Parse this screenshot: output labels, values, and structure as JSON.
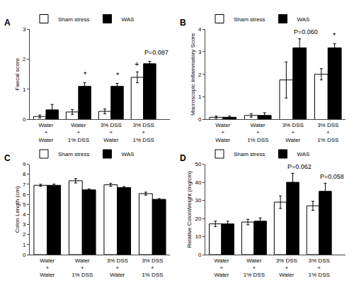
{
  "chart_data": [
    {
      "type": "bar",
      "title": "A",
      "ylabel": "Faecal score",
      "categories": [
        "Water\n+\nWater",
        "Water\n+\n1% DSS",
        "3% DSS\n+\nWater",
        "3% DSS\n+\n1% DSS"
      ],
      "series": [
        {
          "name": "Sham stress",
          "color": "white",
          "values": [
            0.1,
            0.25,
            0.27,
            1.4
          ],
          "errors": [
            0.05,
            0.08,
            0.08,
            0.18
          ]
        },
        {
          "name": "WAS",
          "color": "black",
          "values": [
            0.32,
            1.1,
            1.1,
            1.85
          ],
          "errors": [
            0.18,
            0.12,
            0.1,
            0.08
          ]
        }
      ],
      "ylim": [
        0,
        3
      ],
      "yticks": [
        0,
        1,
        2,
        3
      ],
      "grid": false,
      "legend": "upper left",
      "annotations": [
        {
          "text": "*",
          "category": "Water\n+\n1% DSS",
          "series": "WAS"
        },
        {
          "text": "*",
          "category": "3% DSS\n+\nWater",
          "series": "WAS"
        },
        {
          "text": "+",
          "category": "3% DSS\n+\n1% DSS",
          "series": "Sham stress"
        },
        {
          "text": "P=0.087",
          "category": "3% DSS\n+\n1% DSS",
          "series": "WAS",
          "y": 2.05
        }
      ]
    },
    {
      "type": "bar",
      "title": "B",
      "ylabel": "Macroscopic Inflammatory Score",
      "categories": [
        "Water\n+\nWater",
        "Water\n+\n1% DSS",
        "3% DSS\n+\nWater",
        "3% DSS\n+\n1% DSS"
      ],
      "series": [
        {
          "name": "Sham stress",
          "color": "white",
          "values": [
            0.1,
            0.18,
            1.75,
            2.0
          ],
          "errors": [
            0.05,
            0.08,
            0.8,
            0.25
          ]
        },
        {
          "name": "WAS",
          "color": "black",
          "values": [
            0.1,
            0.18,
            3.17,
            3.17
          ],
          "errors": [
            0.05,
            0.12,
            0.4,
            0.18
          ]
        }
      ],
      "ylim": [
        0,
        4
      ],
      "yticks": [
        0,
        1,
        2,
        3,
        4
      ],
      "grid": false,
      "legend": "upper left",
      "annotations": [
        {
          "text": "*",
          "category": "3% DSS\n+\n1% DSS",
          "series": "WAS"
        },
        {
          "text": "P=0.060",
          "category": "3% DSS\n+\nWater",
          "series": "WAS",
          "y": 3.65
        }
      ]
    },
    {
      "type": "bar",
      "title": "C",
      "ylabel": "Colon Length (cm)",
      "categories": [
        "Water\n+\nWater",
        "Water\n+\n1% DSS",
        "3% DSS\n+\nWater",
        "3% DSS\n+\n1% DSS"
      ],
      "series": [
        {
          "name": "Sham stress",
          "color": "white",
          "values": [
            6.9,
            7.35,
            6.95,
            6.07
          ],
          "errors": [
            0.1,
            0.22,
            0.15,
            0.15
          ]
        },
        {
          "name": "WAS",
          "color": "black",
          "values": [
            6.9,
            6.45,
            6.68,
            5.5
          ],
          "errors": [
            0.12,
            0.1,
            0.1,
            0.08
          ]
        }
      ],
      "ylim": [
        0,
        9
      ],
      "yticks": [
        0,
        1,
        2,
        3,
        4,
        5,
        6,
        7,
        8,
        9
      ],
      "grid": false,
      "legend": "upper left",
      "annotations": []
    },
    {
      "type": "bar",
      "title": "D",
      "ylabel": "Relative ColonWeight (mg/cm)",
      "categories": [
        "Water\n+\nWater",
        "Water\n+\n1% DSS",
        "3% DSS\n+\nWater",
        "3% DSS\n+\n1% DSS"
      ],
      "series": [
        {
          "name": "Sham stress",
          "color": "white",
          "values": [
            17.0,
            18.0,
            29.0,
            27.0
          ],
          "errors": [
            1.5,
            1.5,
            3.5,
            2.5
          ]
        },
        {
          "name": "WAS",
          "color": "black",
          "values": [
            17.0,
            18.5,
            40.0,
            35.0
          ],
          "errors": [
            1.5,
            1.8,
            5.0,
            4.5
          ]
        }
      ],
      "ylim": [
        0,
        50
      ],
      "yticks": [
        0,
        10,
        20,
        30,
        40,
        50
      ],
      "grid": false,
      "legend": "upper left",
      "annotations": [
        {
          "text": "P=0.062",
          "category": "3% DSS\n+\nWater",
          "series": "WAS",
          "y": 46.0
        },
        {
          "text": "P=0.058",
          "category": "3% DSS\n+\n1% DSS",
          "series": "WAS",
          "y": 40.5
        }
      ]
    }
  ]
}
